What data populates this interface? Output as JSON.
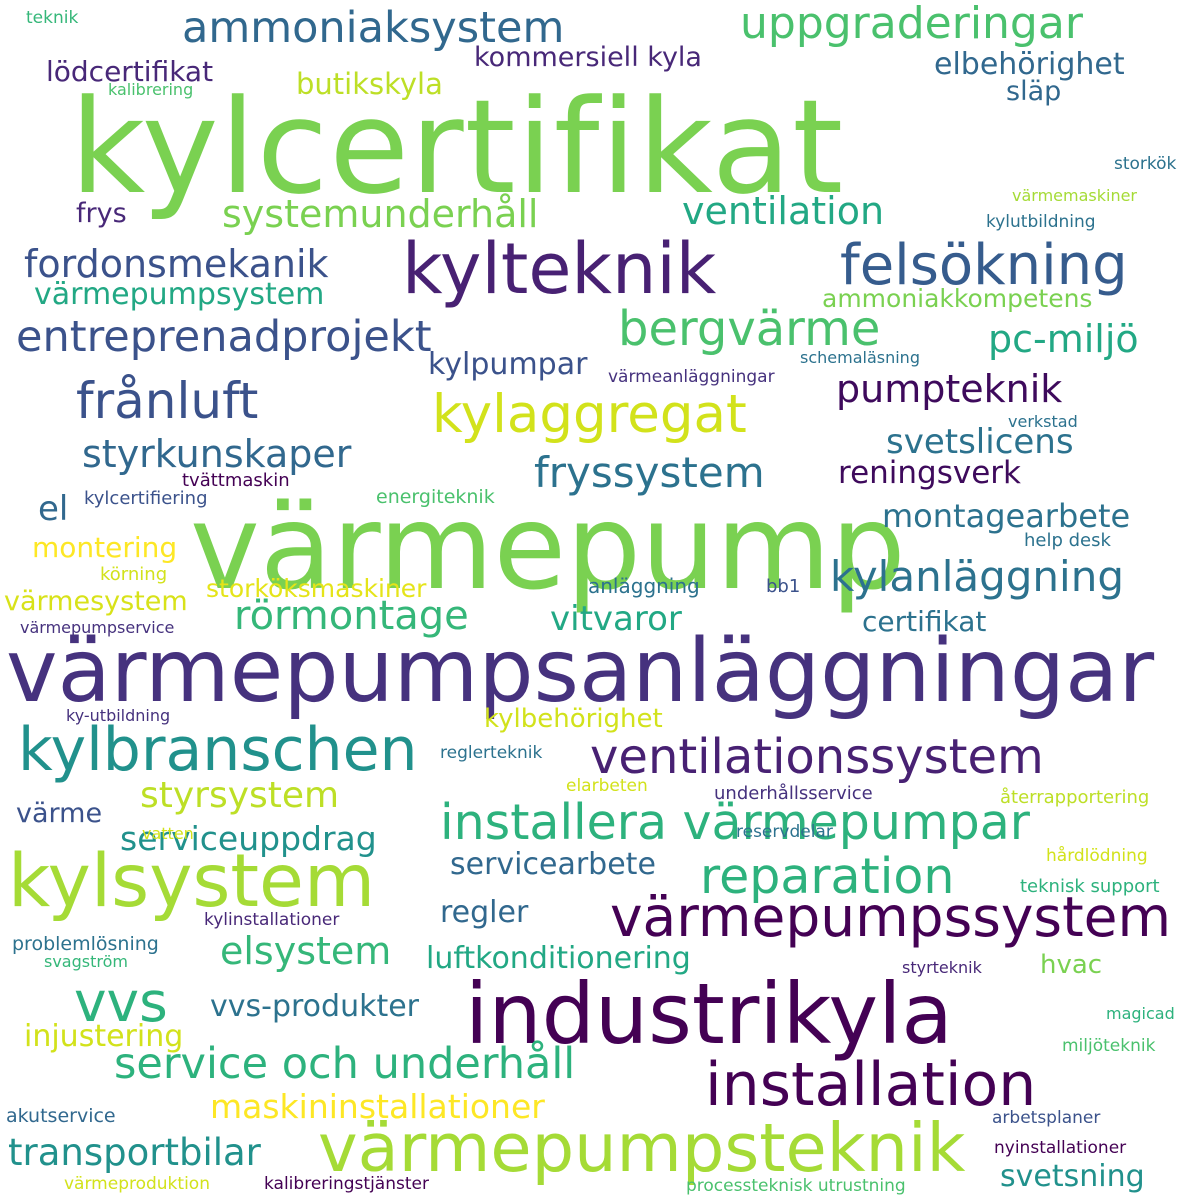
{
  "words": [
    {
      "text": "kylcertifikat",
      "color": "#7ad151"
    },
    {
      "text": "värmepump",
      "color": "#7ad151"
    },
    {
      "text": "värmepumpsanläggningar",
      "color": "#46327e"
    },
    {
      "text": "industrikyla",
      "color": "#440154"
    },
    {
      "text": "kylteknik",
      "color": "#482173"
    },
    {
      "text": "kylsystem",
      "color": "#a5db36"
    },
    {
      "text": "värmepumpsteknik",
      "color": "#a5db36"
    },
    {
      "text": "kylbranschen",
      "color": "#21918c"
    },
    {
      "text": "installation",
      "color": "#440154"
    },
    {
      "text": "värmepumpssystem",
      "color": "#440154"
    },
    {
      "text": "installera värmepumpar",
      "color": "#2db27d"
    },
    {
      "text": "felsökning",
      "color": "#365c8d"
    },
    {
      "text": "ventilationssystem",
      "color": "#482173"
    },
    {
      "text": "kylaggregat",
      "color": "#d2e21b"
    },
    {
      "text": "bergvärme",
      "color": "#4ac16d"
    },
    {
      "text": "reparation",
      "color": "#2db27d"
    },
    {
      "text": "vvs",
      "color": "#2db27d"
    },
    {
      "text": "service och underhåll",
      "color": "#2db27d"
    },
    {
      "text": "ammoniaksystem",
      "color": "#31688e"
    },
    {
      "text": "entreprenadprojekt",
      "color": "#3b528b"
    },
    {
      "text": "uppgraderingar",
      "color": "#4ac16d"
    },
    {
      "text": "frånluft",
      "color": "#3b528b"
    },
    {
      "text": "fryssystem",
      "color": "#2c728e"
    },
    {
      "text": "kylanläggning",
      "color": "#2c728e"
    },
    {
      "text": "systemunderhåll",
      "color": "#7ad151"
    },
    {
      "text": "ventilation",
      "color": "#22a884"
    },
    {
      "text": "fordonsmekanik",
      "color": "#3b528b"
    },
    {
      "text": "styrkunskaper",
      "color": "#31688e"
    },
    {
      "text": "rörmontage",
      "color": "#35b779"
    },
    {
      "text": "elsystem",
      "color": "#35b779"
    },
    {
      "text": "pc-miljö",
      "color": "#22a884"
    },
    {
      "text": "pumpteknik",
      "color": "#3e0a5c"
    },
    {
      "text": "styrsystem",
      "color": "#bddf26"
    },
    {
      "text": "transportbilar",
      "color": "#21918c"
    },
    {
      "text": "maskininstallationer",
      "color": "#fde725"
    },
    {
      "text": "vvs-produkter",
      "color": "#2c728e"
    },
    {
      "text": "montagearbete",
      "color": "#2c728e"
    },
    {
      "text": "svetslicens",
      "color": "#2c728e"
    },
    {
      "text": "serviceuppdrag",
      "color": "#21918c"
    },
    {
      "text": "luftkonditionering",
      "color": "#22a884"
    },
    {
      "text": "injustering",
      "color": "#d2e21b"
    },
    {
      "text": "svetsning",
      "color": "#21918c"
    },
    {
      "text": "värmepumpsystem",
      "color": "#22a884"
    },
    {
      "text": "servicearbete",
      "color": "#31688e"
    },
    {
      "text": "vitvaror",
      "color": "#22a884"
    },
    {
      "text": "el",
      "color": "#31688e"
    },
    {
      "text": "butikskyla",
      "color": "#bddf26"
    },
    {
      "text": "elbehörighet",
      "color": "#31688e"
    },
    {
      "text": "kommersiell kyla",
      "color": "#482878"
    },
    {
      "text": "lödcertifikat",
      "color": "#482878"
    },
    {
      "text": "regler",
      "color": "#31688e"
    },
    {
      "text": "reningsverk",
      "color": "#3e0a5c"
    },
    {
      "text": "certifikat",
      "color": "#2c728e"
    },
    {
      "text": "kylpumpar",
      "color": "#3b528b"
    },
    {
      "text": "kylbehörighet",
      "color": "#d2e21b"
    },
    {
      "text": "montering",
      "color": "#fde725"
    },
    {
      "text": "värmesystem",
      "color": "#d8e219"
    },
    {
      "text": "storköksmaskiner",
      "color": "#e5e419"
    },
    {
      "text": "ammoniakkompetens",
      "color": "#7ad151"
    },
    {
      "text": "hvac",
      "color": "#7ad151"
    },
    {
      "text": "frys",
      "color": "#482878"
    },
    {
      "text": "värme",
      "color": "#3b528b"
    },
    {
      "text": "släp",
      "color": "#31688e"
    },
    {
      "text": "tvättmaskin",
      "color": "#440154"
    },
    {
      "text": "energiteknik",
      "color": "#4ac16d"
    },
    {
      "text": "kylcertifiering",
      "color": "#3b528b"
    },
    {
      "text": "help desk",
      "color": "#2c728e"
    },
    {
      "text": "anläggning",
      "color": "#2c728e"
    },
    {
      "text": "bb1",
      "color": "#3b528b"
    },
    {
      "text": "körning",
      "color": "#d2e21b"
    },
    {
      "text": "värmepumpservice",
      "color": "#46327e"
    },
    {
      "text": "ky-utbildning",
      "color": "#46327e"
    },
    {
      "text": "reglerteknik",
      "color": "#2c728e"
    },
    {
      "text": "elarbeten",
      "color": "#d2e21b"
    },
    {
      "text": "underhållsservice",
      "color": "#46327e"
    },
    {
      "text": "återrapportering",
      "color": "#bddf26"
    },
    {
      "text": "vatten",
      "color": "#d2e21b"
    },
    {
      "text": "reservdelar",
      "color": "#2c728e"
    },
    {
      "text": "hårdlödning",
      "color": "#d2e21b"
    },
    {
      "text": "teknisk support",
      "color": "#2db27d"
    },
    {
      "text": "kylinstallationer",
      "color": "#482878"
    },
    {
      "text": "problemlösning",
      "color": "#2c728e"
    },
    {
      "text": "svagström",
      "color": "#35b779"
    },
    {
      "text": "styrteknik",
      "color": "#482878"
    },
    {
      "text": "magicad",
      "color": "#2db27d"
    },
    {
      "text": "miljöteknik",
      "color": "#4ac16d"
    },
    {
      "text": "akutservice",
      "color": "#31688e"
    },
    {
      "text": "arbetsplaner",
      "color": "#3b528b"
    },
    {
      "text": "nyinstallationer",
      "color": "#440154"
    },
    {
      "text": "värmeproduktion",
      "color": "#d2e21b"
    },
    {
      "text": "kalibreringstjänster",
      "color": "#440154"
    },
    {
      "text": "processteknisk utrustning",
      "color": "#4ac16d"
    },
    {
      "text": "teknik",
      "color": "#35b779"
    },
    {
      "text": "kalibrering",
      "color": "#4ac16d"
    },
    {
      "text": "storkök",
      "color": "#2c728e"
    },
    {
      "text": "värmemaskiner",
      "color": "#a5db36"
    },
    {
      "text": "kylutbildning",
      "color": "#2c728e"
    },
    {
      "text": "schemaläsning",
      "color": "#2c728e"
    },
    {
      "text": "värmeanläggningar",
      "color": "#46327e"
    },
    {
      "text": "verkstad",
      "color": "#2c728e"
    }
  ]
}
